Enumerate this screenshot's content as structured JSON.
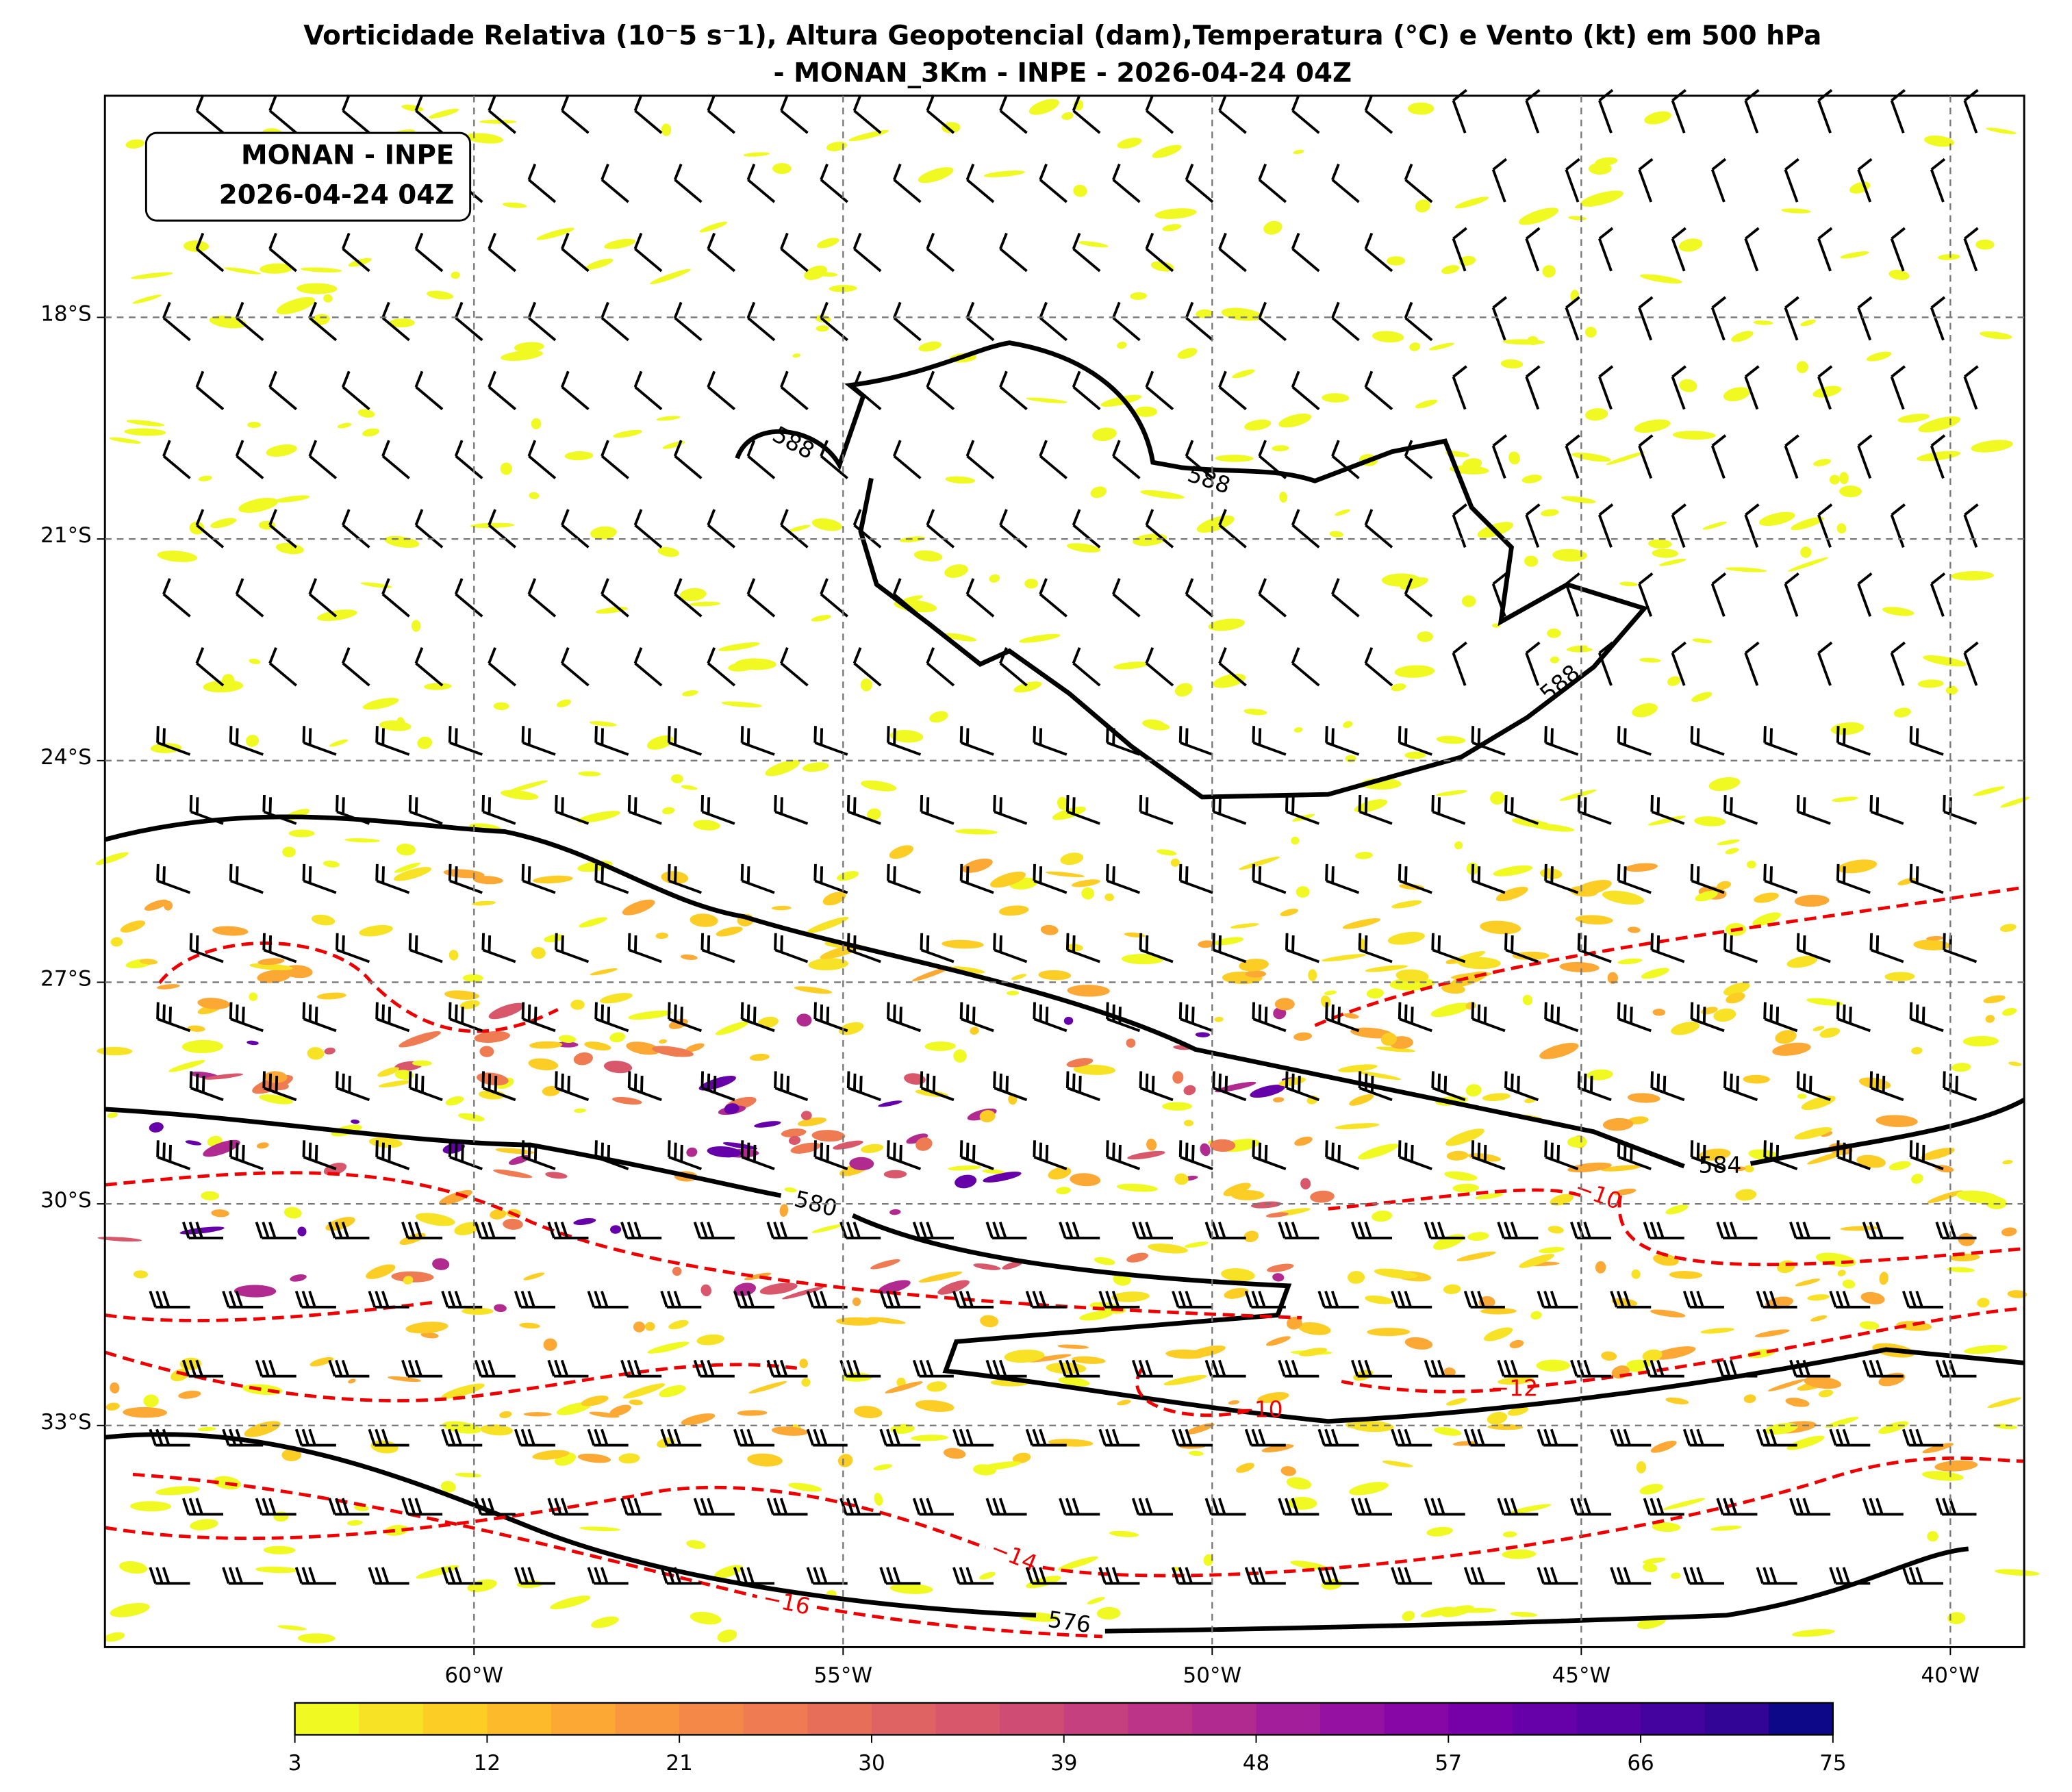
{
  "title": [
    "Vorticidade Relativa (10⁻5 s⁻1), Altura Geopotencial (dam),Temperatura (°C) e Vento (kt) em 500 hPa",
    "- MONAN_3Km - INPE - 2026-04-24 04Z"
  ],
  "annotation": [
    "MONAN - INPE",
    "2026-04-24 04Z"
  ],
  "map": {
    "xlim": [
      -65,
      -39
    ],
    "ylim": [
      -36,
      -15
    ],
    "grid": true,
    "xticks": [
      {
        "value": -60,
        "label": "60°W"
      },
      {
        "value": -55,
        "label": "55°W"
      },
      {
        "value": -50,
        "label": "50°W"
      },
      {
        "value": -45,
        "label": "45°W"
      },
      {
        "value": -40,
        "label": "40°W"
      }
    ],
    "yticks": [
      {
        "value": -18,
        "label": "18°S"
      },
      {
        "value": -21,
        "label": "21°S"
      },
      {
        "value": -24,
        "label": "24°S"
      },
      {
        "value": -27,
        "label": "27°S"
      },
      {
        "value": -30,
        "label": "30°S"
      },
      {
        "value": -33,
        "label": "33°S"
      }
    ],
    "height_contours": [
      588,
      588,
      588,
      584,
      580,
      576
    ],
    "temperature_contours": [
      {
        "value": -10,
        "label": "−10"
      },
      {
        "value": -12,
        "label": "−12"
      },
      {
        "value": -10,
        "label": "−10"
      },
      {
        "value": -14,
        "label": "−14"
      },
      {
        "value": -16,
        "label": "−16"
      }
    ]
  },
  "colorbar": {
    "levels": [
      3,
      6,
      9,
      12,
      15,
      18,
      21,
      24,
      27,
      30,
      33,
      36,
      39,
      42,
      45,
      48,
      51,
      54,
      57,
      60,
      63,
      66,
      69,
      72,
      75
    ],
    "colors": [
      "#f0f921",
      "#f7e225",
      "#fcce25",
      "#fdbb2b",
      "#fca835",
      "#f9973f",
      "#f48849",
      "#ee7b51",
      "#e76f5a",
      "#e06363",
      "#d8576b",
      "#cf4c74",
      "#c5407e",
      "#bb3488",
      "#b02a90",
      "#a31e9a",
      "#9511a1",
      "#8606a6",
      "#7601a8",
      "#6600a8",
      "#5601a4",
      "#44039e",
      "#330597",
      "#0d0887"
    ],
    "ticks": [
      3,
      12,
      21,
      30,
      39,
      48,
      57,
      66,
      75
    ]
  }
}
